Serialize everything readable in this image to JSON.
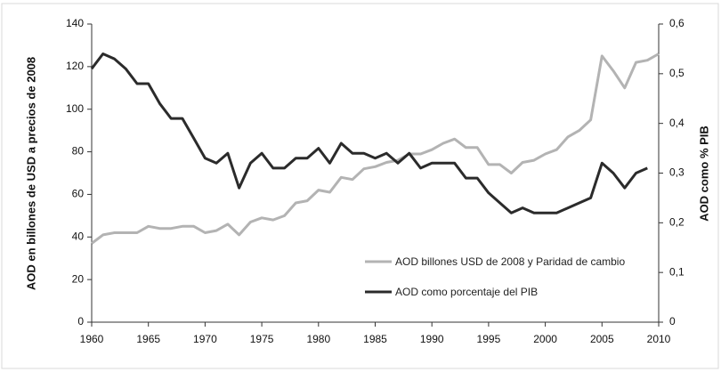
{
  "chart_data": {
    "type": "line",
    "y_label": "AOD en billones de USD a precios de 2008",
    "y2_label": "AOD  como % PIB",
    "x": [
      1960,
      1961,
      1962,
      1963,
      1964,
      1965,
      1966,
      1967,
      1968,
      1969,
      1970,
      1971,
      1972,
      1973,
      1974,
      1975,
      1976,
      1977,
      1978,
      1979,
      1980,
      1981,
      1982,
      1983,
      1984,
      1985,
      1986,
      1987,
      1988,
      1989,
      1990,
      1991,
      1992,
      1993,
      1994,
      1995,
      1996,
      1997,
      1998,
      1999,
      2000,
      2001,
      2002,
      2003,
      2004,
      2005,
      2006,
      2007,
      2008,
      2009,
      2010
    ],
    "xlim": [
      1960,
      2010
    ],
    "xticks": [
      1960,
      1965,
      1970,
      1975,
      1980,
      1985,
      1990,
      1995,
      2000,
      2005,
      2010
    ],
    "ylim": [
      0,
      140
    ],
    "yticks": [
      0,
      20,
      40,
      60,
      80,
      100,
      120,
      140
    ],
    "y2lim": [
      0,
      0.6
    ],
    "y2ticks": [
      0,
      {
        "value": 0.1,
        "label": "0,1"
      },
      {
        "value": 0.2,
        "label": "0,2"
      },
      {
        "value": 0.3,
        "label": "0,3"
      },
      {
        "value": 0.4,
        "label": "0,4"
      },
      {
        "value": 0.5,
        "label": "0,5"
      },
      {
        "value": 0.6,
        "label": "0,6"
      }
    ],
    "series": [
      {
        "name": "AOD billones USD de 2008 y Paridad de cambio",
        "color": "#b3b3b3",
        "axis": "y",
        "values": [
          37,
          41,
          42,
          42,
          42,
          45,
          44,
          44,
          45,
          45,
          42,
          43,
          46,
          41,
          47,
          49,
          48,
          50,
          56,
          57,
          62,
          61,
          68,
          67,
          72,
          73,
          75,
          76,
          79,
          79,
          81,
          84,
          86,
          82,
          82,
          74,
          74,
          70,
          75,
          76,
          79,
          81,
          87,
          90,
          95,
          125,
          118,
          110,
          122,
          123,
          126
        ]
      },
      {
        "name": "AOD como porcentaje del PIB",
        "color": "#2b2b2b",
        "axis": "y2",
        "values": [
          0.51,
          0.54,
          0.53,
          0.51,
          0.48,
          0.48,
          0.44,
          0.41,
          0.41,
          0.37,
          0.33,
          0.32,
          0.34,
          0.27,
          0.32,
          0.34,
          0.31,
          0.31,
          0.33,
          0.33,
          0.35,
          0.32,
          0.36,
          0.34,
          0.34,
          0.33,
          0.34,
          0.32,
          0.34,
          0.31,
          0.32,
          0.32,
          0.32,
          0.29,
          0.29,
          0.26,
          0.24,
          0.22,
          0.23,
          0.22,
          0.22,
          0.22,
          0.23,
          0.24,
          0.25,
          0.32,
          0.3,
          0.27,
          0.3,
          0.31,
          null
        ]
      }
    ],
    "legend": "lower center"
  }
}
